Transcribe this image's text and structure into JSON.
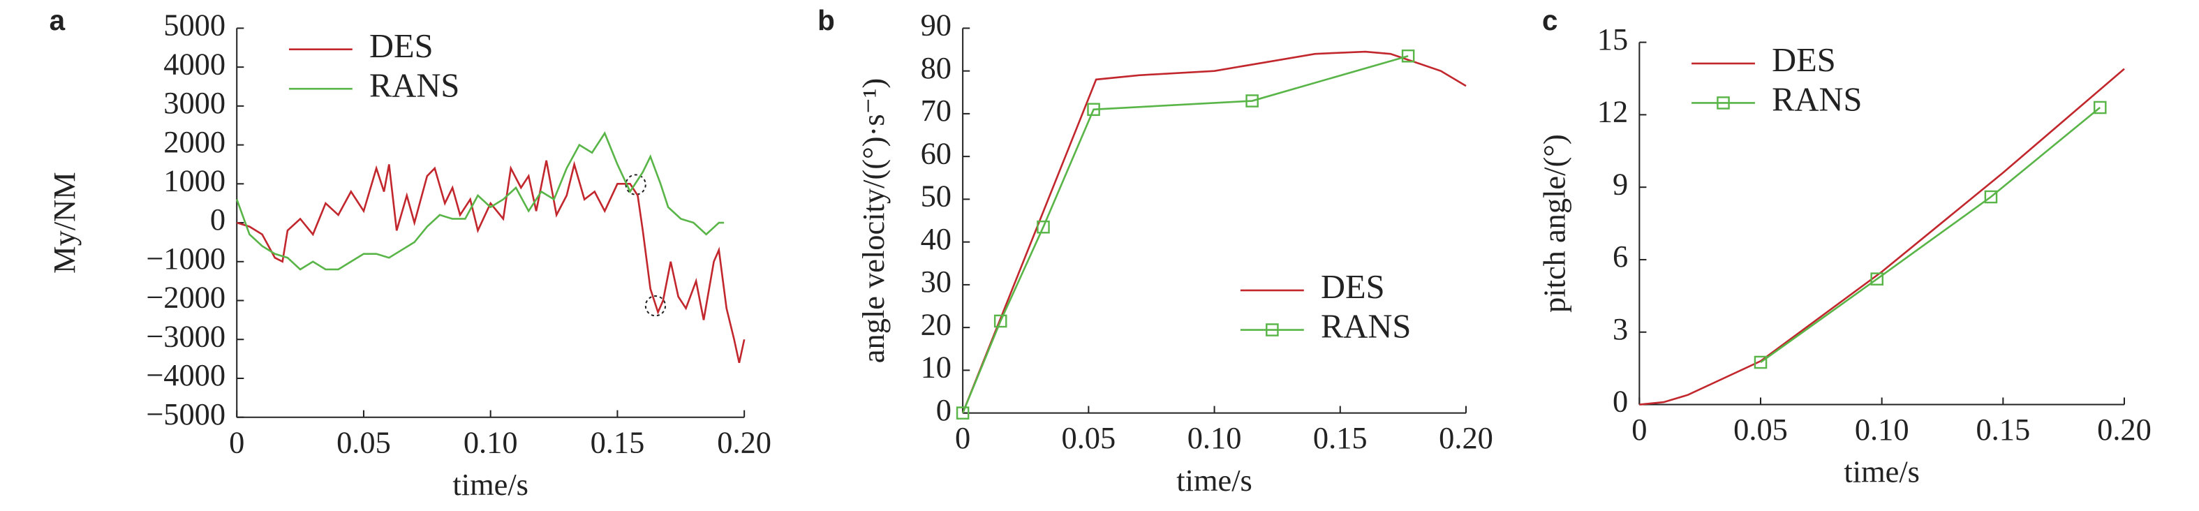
{
  "chart_data": [
    {
      "type": "line",
      "panel_label": "a",
      "xlabel": "time/s",
      "ylabel": "My/NM",
      "xlim": [
        0,
        0.2
      ],
      "xticks": [
        0,
        0.05,
        {
          "value": 0.1,
          "label": "0.10"
        },
        0.15,
        {
          "value": 0.2,
          "label": "0.20"
        }
      ],
      "ylim": [
        -5000,
        5000
      ],
      "yticks": [
        {
          "value": -5000,
          "label": "−5000"
        },
        {
          "value": -4000,
          "label": "−4000"
        },
        {
          "value": -3000,
          "label": "−3000"
        },
        {
          "value": -2000,
          "label": "−2000"
        },
        {
          "value": -1000,
          "label": "−1000"
        },
        0,
        1000,
        2000,
        3000,
        4000,
        5000
      ],
      "legend": "upper left",
      "series": [
        {
          "name": "DES",
          "color": "#c1272d",
          "x": [
            0,
            0.005,
            0.01,
            0.015,
            0.018,
            0.02,
            0.025,
            0.03,
            0.035,
            0.04,
            0.045,
            0.05,
            0.055,
            0.058,
            0.06,
            0.063,
            0.067,
            0.07,
            0.075,
            0.078,
            0.082,
            0.085,
            0.088,
            0.092,
            0.095,
            0.1,
            0.105,
            0.108,
            0.112,
            0.115,
            0.118,
            0.122,
            0.126,
            0.13,
            0.133,
            0.137,
            0.141,
            0.145,
            0.15,
            0.155,
            0.158,
            0.16,
            0.163,
            0.166,
            0.168,
            0.171,
            0.174,
            0.177,
            0.181,
            0.184,
            0.188,
            0.19,
            0.193,
            0.196,
            0.198,
            0.2
          ],
          "values": [
            0,
            -100,
            -300,
            -900,
            -1000,
            -200,
            100,
            -300,
            500,
            200,
            800,
            300,
            1400,
            800,
            1500,
            -200,
            700,
            0,
            1200,
            1400,
            500,
            900,
            200,
            600,
            -200,
            500,
            100,
            1400,
            900,
            1200,
            300,
            1600,
            200,
            700,
            1500,
            600,
            800,
            300,
            1000,
            1000,
            700,
            -200,
            -1700,
            -2300,
            -2000,
            -1000,
            -1900,
            -2200,
            -1500,
            -2500,
            -1000,
            -700,
            -2200,
            -3000,
            -3600,
            -3000
          ]
        },
        {
          "name": "RANS",
          "color": "#59b548",
          "x": [
            0,
            0.005,
            0.01,
            0.015,
            0.02,
            0.025,
            0.03,
            0.035,
            0.04,
            0.045,
            0.05,
            0.055,
            0.06,
            0.065,
            0.07,
            0.075,
            0.08,
            0.085,
            0.09,
            0.095,
            0.1,
            0.105,
            0.11,
            0.115,
            0.12,
            0.125,
            0.13,
            0.135,
            0.14,
            0.145,
            0.15,
            0.155,
            0.16,
            0.163,
            0.167,
            0.17,
            0.175,
            0.18,
            0.185,
            0.19,
            0.192
          ],
          "values": [
            600,
            -300,
            -600,
            -800,
            -900,
            -1200,
            -1000,
            -1200,
            -1200,
            -1000,
            -800,
            -800,
            -900,
            -700,
            -500,
            -100,
            200,
            100,
            100,
            700,
            400,
            600,
            900,
            300,
            800,
            600,
            1400,
            2000,
            1800,
            2300,
            1500,
            800,
            1300,
            1700,
            1000,
            400,
            100,
            0,
            -300,
            0,
            0
          ]
        }
      ]
    },
    {
      "type": "line",
      "panel_label": "b",
      "xlabel": "time/s",
      "ylabel": "angle velocity/((°)·s⁻¹)",
      "xlim": [
        0,
        0.2
      ],
      "xticks": [
        0,
        0.05,
        {
          "value": 0.1,
          "label": "0.10"
        },
        0.15,
        {
          "value": 0.2,
          "label": "0.20"
        }
      ],
      "ylim": [
        0,
        90
      ],
      "yticks": [
        0,
        10,
        20,
        30,
        40,
        50,
        60,
        70,
        80,
        90
      ],
      "legend": "lower right",
      "series": [
        {
          "name": "DES",
          "color": "#c1272d",
          "x": [
            0,
            0.053,
            0.07,
            0.1,
            0.12,
            0.14,
            0.16,
            0.17,
            0.18,
            0.19,
            0.2
          ],
          "values": [
            0,
            78,
            79,
            80,
            82,
            84,
            84.5,
            84,
            82,
            80,
            76.5
          ]
        },
        {
          "name": "RANS",
          "color": "#59b548",
          "marker": "square",
          "x": [
            0,
            0.015,
            0.032,
            0.052,
            0.115,
            0.177
          ],
          "values": [
            0,
            21.5,
            43.5,
            71,
            73,
            83.5
          ]
        }
      ]
    },
    {
      "type": "line",
      "panel_label": "c",
      "xlabel": "time/s",
      "ylabel": "pitch angle/(°)",
      "xlim": [
        0,
        0.2
      ],
      "xticks": [
        0,
        0.05,
        {
          "value": 0.1,
          "label": "0.10"
        },
        0.15,
        {
          "value": 0.2,
          "label": "0.20"
        }
      ],
      "ylim": [
        0,
        15
      ],
      "yticks": [
        0,
        3,
        6,
        9,
        12,
        15
      ],
      "legend": "upper left",
      "series": [
        {
          "name": "DES",
          "color": "#c1272d",
          "x": [
            0,
            0.01,
            0.02,
            0.05,
            0.1,
            0.15,
            0.2
          ],
          "values": [
            0,
            0.1,
            0.4,
            1.8,
            5.5,
            9.6,
            13.9
          ]
        },
        {
          "name": "RANS",
          "color": "#59b548",
          "marker": "square",
          "x": [
            0.05,
            0.098,
            0.145,
            0.19
          ],
          "values": [
            1.75,
            5.2,
            8.6,
            12.3
          ]
        }
      ]
    }
  ]
}
